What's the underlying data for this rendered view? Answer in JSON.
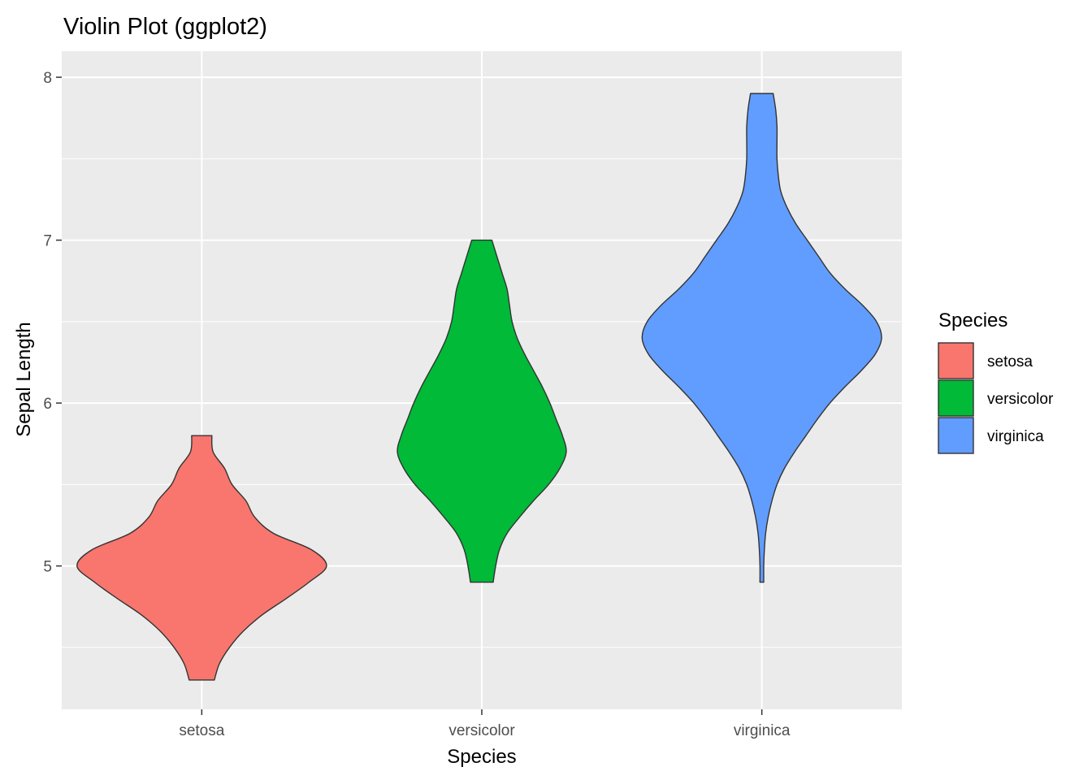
{
  "chart_data": {
    "type": "violin",
    "title": "Violin Plot (ggplot2)",
    "xlabel": "Species",
    "ylabel": "Sepal Length",
    "categories": [
      "setosa",
      "versicolor",
      "virginica"
    ],
    "ylim": [
      4.12,
      8.16
    ],
    "yticks": [
      5,
      6,
      7,
      8
    ],
    "yminor": [
      4.5,
      5.5,
      6.5,
      7.5
    ],
    "grid": true,
    "legend": {
      "title": "Species",
      "position": "right",
      "entries": [
        "setosa",
        "versicolor",
        "virginica"
      ]
    },
    "colors": {
      "setosa": "#F8766D",
      "versicolor": "#00BA38",
      "virginica": "#619CFF",
      "panel": "#EBEBEB",
      "grid": "#FFFFFF",
      "outline": "#333333"
    },
    "series": [
      {
        "name": "setosa",
        "min": 4.3,
        "max": 5.8,
        "profile": [
          [
            4.3,
            0.1
          ],
          [
            4.4,
            0.14
          ],
          [
            4.5,
            0.22
          ],
          [
            4.6,
            0.33
          ],
          [
            4.7,
            0.48
          ],
          [
            4.8,
            0.67
          ],
          [
            4.9,
            0.85
          ],
          [
            5.0,
            0.99
          ],
          [
            5.1,
            0.87
          ],
          [
            5.2,
            0.57
          ],
          [
            5.3,
            0.42
          ],
          [
            5.4,
            0.35
          ],
          [
            5.5,
            0.24
          ],
          [
            5.6,
            0.18
          ],
          [
            5.7,
            0.09
          ],
          [
            5.8,
            0.08
          ]
        ]
      },
      {
        "name": "versicolor",
        "min": 4.9,
        "max": 7.0,
        "profile": [
          [
            4.9,
            0.09
          ],
          [
            5.0,
            0.11
          ],
          [
            5.1,
            0.14
          ],
          [
            5.2,
            0.2
          ],
          [
            5.3,
            0.3
          ],
          [
            5.4,
            0.41
          ],
          [
            5.5,
            0.53
          ],
          [
            5.6,
            0.62
          ],
          [
            5.7,
            0.67
          ],
          [
            5.8,
            0.64
          ],
          [
            5.9,
            0.59
          ],
          [
            6.0,
            0.54
          ],
          [
            6.1,
            0.48
          ],
          [
            6.2,
            0.41
          ],
          [
            6.3,
            0.34
          ],
          [
            6.4,
            0.28
          ],
          [
            6.5,
            0.24
          ],
          [
            6.6,
            0.22
          ],
          [
            6.7,
            0.2
          ],
          [
            6.8,
            0.16
          ],
          [
            6.9,
            0.12
          ],
          [
            7.0,
            0.08
          ]
        ]
      },
      {
        "name": "virginica",
        "min": 4.9,
        "max": 7.9,
        "profile": [
          [
            4.9,
            0.015
          ],
          [
            5.0,
            0.015
          ],
          [
            5.1,
            0.02
          ],
          [
            5.2,
            0.03
          ],
          [
            5.3,
            0.05
          ],
          [
            5.4,
            0.08
          ],
          [
            5.5,
            0.12
          ],
          [
            5.6,
            0.18
          ],
          [
            5.7,
            0.26
          ],
          [
            5.8,
            0.35
          ],
          [
            5.9,
            0.44
          ],
          [
            6.0,
            0.54
          ],
          [
            6.1,
            0.66
          ],
          [
            6.2,
            0.79
          ],
          [
            6.3,
            0.9
          ],
          [
            6.4,
            0.95
          ],
          [
            6.5,
            0.91
          ],
          [
            6.6,
            0.8
          ],
          [
            6.7,
            0.66
          ],
          [
            6.8,
            0.54
          ],
          [
            6.9,
            0.45
          ],
          [
            7.0,
            0.36
          ],
          [
            7.1,
            0.27
          ],
          [
            7.2,
            0.2
          ],
          [
            7.3,
            0.15
          ],
          [
            7.4,
            0.13
          ],
          [
            7.5,
            0.12
          ],
          [
            7.6,
            0.12
          ],
          [
            7.7,
            0.12
          ],
          [
            7.8,
            0.11
          ],
          [
            7.9,
            0.09
          ]
        ]
      }
    ]
  }
}
